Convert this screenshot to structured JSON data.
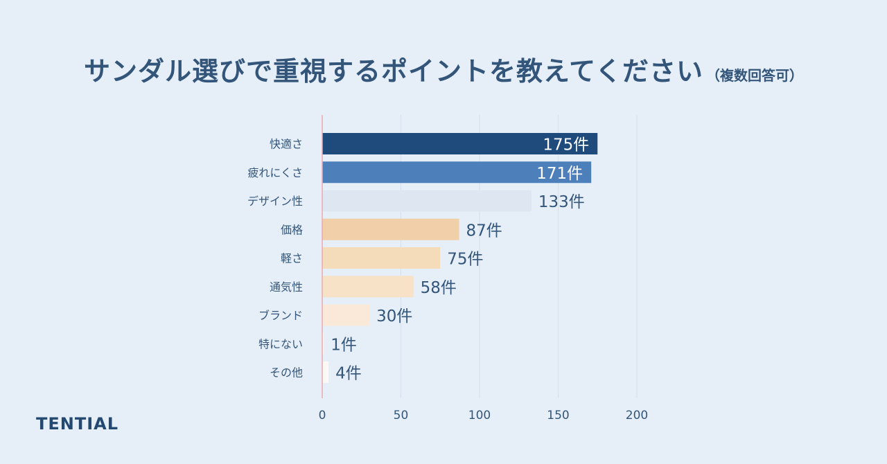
{
  "title": {
    "main": "サンダル選びで重視するポイントを教えてください",
    "sub": "（複数回答可）"
  },
  "logo": "TENTIAL",
  "chart_data": {
    "type": "bar",
    "orientation": "horizontal",
    "title": "サンダル選びで重視するポイントを教えてください（複数回答可）",
    "xlabel": "",
    "ylabel": "",
    "xlim": [
      0,
      200
    ],
    "ticks": [
      0,
      50,
      100,
      150,
      200
    ],
    "grid": true,
    "unit": "件",
    "categories": [
      "快適さ",
      "疲れにくさ",
      "デザイン性",
      "価格",
      "軽さ",
      "通気性",
      "ブランド",
      "特にない",
      "その他"
    ],
    "values": [
      175,
      171,
      133,
      87,
      75,
      58,
      30,
      1,
      4
    ],
    "colors": [
      "#1f4a7c",
      "#4d7fbb",
      "#dde6f1",
      "#f1d0a9",
      "#f4dbb9",
      "#f7e2c8",
      "#fae9d9",
      "#fdf4ec",
      "#fdf8f4"
    ],
    "label_colors": [
      "#ffffff",
      "#ffffff",
      "#33557a",
      "#33557a",
      "#33557a",
      "#33557a",
      "#33557a",
      "#33557a",
      "#33557a"
    ]
  },
  "colors": {
    "background": "#e6eff8",
    "text": "#33557a",
    "axis": "#f1a8b0",
    "grid": "#d3dfec"
  }
}
